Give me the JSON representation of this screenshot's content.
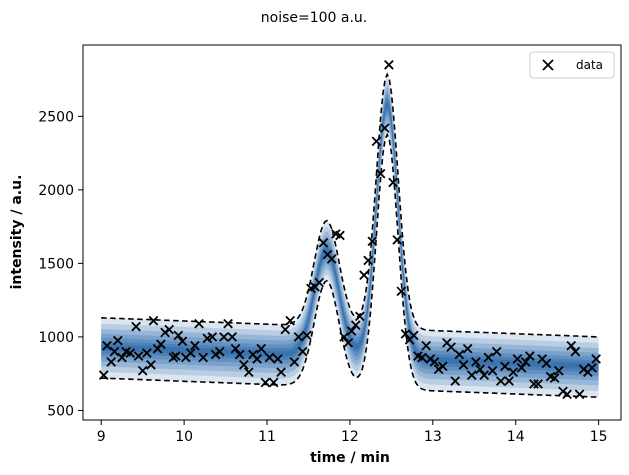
{
  "chart_data": {
    "type": "scatter",
    "title": "noise=100 a.u.",
    "xlabel": "time / min",
    "ylabel": "intensity / a.u.",
    "xlim": [
      8.78,
      15.27
    ],
    "ylim": [
      435,
      2985
    ],
    "xticks": [
      9,
      10,
      11,
      12,
      13,
      14,
      15
    ],
    "xtick_labels": [
      "9",
      "10",
      "11",
      "12",
      "13",
      "14",
      "15"
    ],
    "yticks": [
      500,
      1000,
      1500,
      2000,
      2500
    ],
    "ytick_labels": [
      "500",
      "1000",
      "1500",
      "2000",
      "2500"
    ],
    "legend": {
      "position": "top-right",
      "entries": [
        "data"
      ]
    },
    "grid": false,
    "band_color": "#08519c",
    "bound_color": "#000000",
    "marker_color": "#000000",
    "model": {
      "baseline_start": 930,
      "baseline_end": 800,
      "peaks": [
        {
          "center": 11.72,
          "height": 720,
          "width": 0.15
        },
        {
          "center": 12.45,
          "height": 1730,
          "width": 0.13
        }
      ],
      "upper_offset": 200,
      "lower_offset": 210
    },
    "series": [
      {
        "name": "data",
        "x": [
          9.03,
          9.07,
          9.12,
          9.16,
          9.2,
          9.25,
          9.3,
          9.35,
          9.42,
          9.45,
          9.5,
          9.55,
          9.6,
          9.63,
          9.68,
          9.72,
          9.77,
          9.82,
          9.87,
          9.9,
          9.93,
          9.98,
          10.02,
          10.08,
          10.13,
          10.18,
          10.23,
          10.28,
          10.34,
          10.38,
          10.43,
          10.48,
          10.53,
          10.58,
          10.62,
          10.67,
          10.72,
          10.78,
          10.83,
          10.88,
          10.93,
          10.98,
          11.03,
          11.08,
          11.13,
          11.17,
          11.22,
          11.28,
          11.33,
          11.38,
          11.43,
          11.48,
          11.53,
          11.58,
          11.63,
          11.68,
          11.73,
          11.78,
          11.83,
          11.88,
          11.93,
          11.98,
          12.02,
          12.07,
          12.12,
          12.17,
          12.22,
          12.27,
          12.32,
          12.37,
          12.42,
          12.47,
          12.52,
          12.57,
          12.62,
          12.67,
          12.72,
          12.77,
          12.82,
          12.87,
          12.92,
          12.97,
          13.02,
          13.07,
          13.12,
          13.17,
          13.22,
          13.27,
          13.32,
          13.37,
          13.42,
          13.47,
          13.52,
          13.57,
          13.62,
          13.67,
          13.72,
          13.77,
          13.82,
          13.87,
          13.92,
          13.97,
          14.02,
          14.07,
          14.12,
          14.17,
          14.22,
          14.27,
          14.32,
          14.37,
          14.42,
          14.47,
          14.52,
          14.57,
          14.62,
          14.67,
          14.72,
          14.77,
          14.82,
          14.87,
          14.92,
          14.97
        ],
        "y": [
          740,
          940,
          830,
          900,
          975,
          860,
          900,
          890,
          1070,
          870,
          770,
          890,
          810,
          1110,
          920,
          950,
          1030,
          1050,
          860,
          870,
          1010,
          970,
          860,
          890,
          940,
          1090,
          860,
          990,
          1000,
          880,
          900,
          1000,
          1090,
          1000,
          920,
          880,
          810,
          760,
          880,
          850,
          920,
          690,
          860,
          690,
          850,
          760,
          1050,
          1110,
          830,
          1000,
          900,
          1010,
          1330,
          1340,
          1370,
          1640,
          1560,
          1530,
          1700,
          1690,
          1000,
          960,
          1040,
          1080,
          1140,
          1420,
          1520,
          1650,
          2330,
          2110,
          2420,
          2850,
          2050,
          1660,
          1310,
          1020,
          980,
          1010,
          870,
          860,
          940,
          850,
          830,
          780,
          800,
          960,
          930,
          700,
          880,
          810,
          920,
          740,
          830,
          780,
          740,
          860,
          770,
          900,
          700,
          800,
          700,
          760,
          850,
          790,
          830,
          870,
          680,
          680,
          850,
          820,
          730,
          720,
          770,
          630,
          610,
          940,
          900,
          610,
          780,
          760,
          790,
          850
        ]
      }
    ]
  }
}
